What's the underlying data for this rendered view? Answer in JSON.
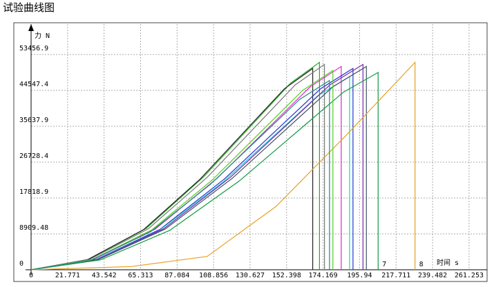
{
  "chart_data": {
    "type": "line",
    "title": "试验曲线图",
    "x_label": "时间 s",
    "y_label": "力 N",
    "xlim": [
      0,
      272
    ],
    "ylim": [
      0,
      61000
    ],
    "xticks": [
      0,
      21.771,
      43.542,
      65.313,
      87.084,
      108.856,
      130.627,
      152.398,
      174.169,
      195.94,
      217.711,
      239.482,
      261.253
    ],
    "yticks": [
      0,
      8909.48,
      17818.9,
      26728.4,
      35637.9,
      44547.4,
      53456.9
    ],
    "grid": true,
    "series": [
      {
        "color": "#22aa22",
        "x": [
          0,
          34.4,
          68.8,
          103.2,
          137.6,
          154.8,
          172,
          172
        ],
        "values": [
          0,
          2575,
          10300,
          23175,
          38625,
          46350,
          51500,
          0
        ]
      },
      {
        "color": "#222222",
        "x": [
          0,
          33.6,
          67.2,
          100.8,
          134.4,
          151.2,
          168,
          168
        ],
        "values": [
          0,
          2500,
          10000,
          22500,
          37500,
          45000,
          50000,
          0
        ]
      },
      {
        "color": "#777777",
        "x": [
          0,
          35,
          70,
          105,
          140,
          157.5,
          175,
          175
        ],
        "values": [
          0,
          2550,
          10200,
          22950,
          38250,
          45900,
          51000,
          0
        ]
      },
      {
        "color": "#dd22cc",
        "x": [
          0,
          37,
          74,
          111,
          148,
          166.5,
          185,
          185
        ],
        "values": [
          0,
          2525,
          10100,
          22725,
          37875,
          45450,
          50500,
          0
        ]
      },
      {
        "color": "#2233cc",
        "x": [
          0,
          38.4,
          76.8,
          115.2,
          153.6,
          172.8,
          192,
          192
        ],
        "values": [
          0,
          2500,
          10000,
          22500,
          37500,
          45000,
          50000,
          0
        ]
      },
      {
        "color": "#22cccc",
        "x": [
          0,
          38,
          76,
          114,
          152,
          171,
          190,
          190
        ],
        "values": [
          0,
          2400,
          9600,
          21600,
          36000,
          43200,
          48000,
          0
        ]
      },
      {
        "color": "#7722aa",
        "x": [
          0,
          39.6,
          79.2,
          118.8,
          158.4,
          178.2,
          198,
          198
        ],
        "values": [
          0,
          2550,
          10200,
          22950,
          38250,
          45900,
          51000,
          0
        ]
      },
      {
        "color": "#445566",
        "x": [
          0,
          40,
          80,
          120,
          160,
          180,
          200,
          200
        ],
        "values": [
          0,
          2525,
          10100,
          22725,
          37875,
          45450,
          50500,
          0
        ]
      },
      {
        "name": "7",
        "color": "#119944",
        "x": [
          0,
          41.4,
          82.8,
          124.2,
          165.6,
          186.3,
          207,
          207
        ],
        "values": [
          0,
          2450,
          9800,
          22050,
          36750,
          44100,
          49000,
          0
        ]
      },
      {
        "name": "8",
        "color": "#e8a020",
        "x": [
          0,
          60,
          105,
          146,
          187,
          229,
          229
        ],
        "values": [
          0,
          800,
          3300,
          15700,
          33000,
          51500,
          0
        ]
      },
      {
        "color": "#55cc22",
        "x": [
          0,
          36,
          72,
          108,
          144,
          162,
          180,
          180
        ],
        "values": [
          0,
          2475,
          9900,
          22275,
          37125,
          44550,
          49500,
          0
        ]
      },
      {
        "color": "#228888",
        "x": [
          0,
          35.6,
          71.2,
          106.8,
          142.4,
          160.2,
          178,
          178
        ],
        "values": [
          0,
          2350,
          9400,
          21150,
          35250,
          42300,
          47000,
          0
        ]
      }
    ]
  }
}
